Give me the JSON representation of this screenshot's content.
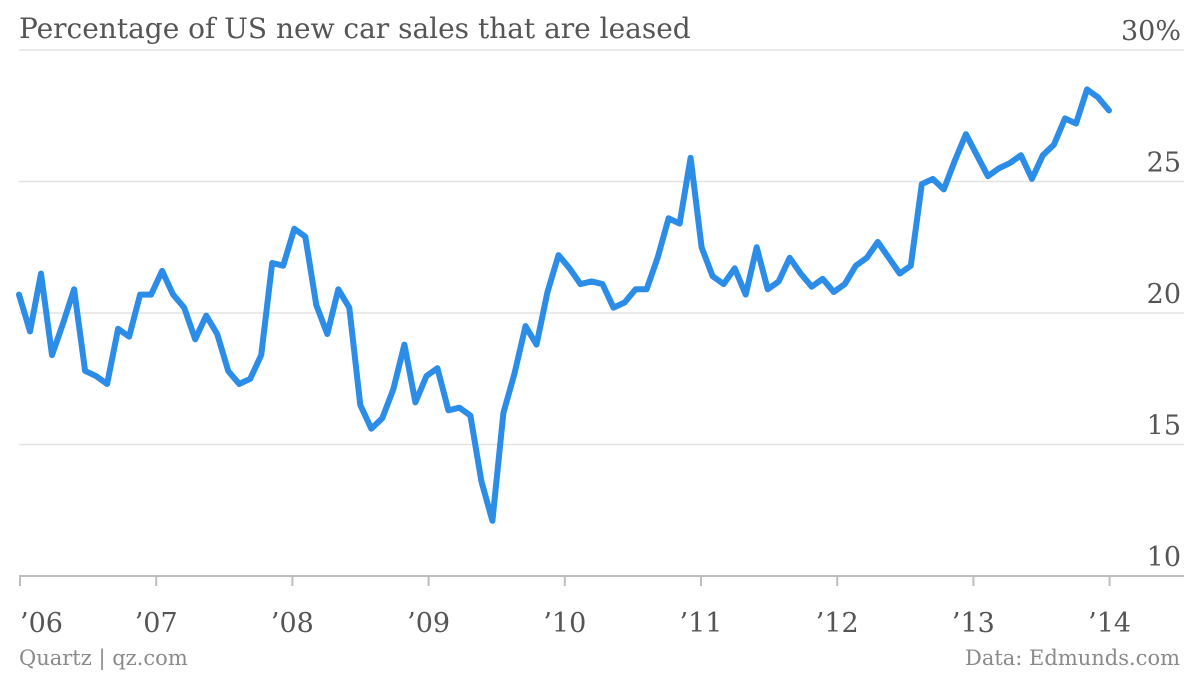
{
  "chart_data": {
    "type": "line",
    "title": "Percentage of US new car sales that are leased",
    "y_unit_label": "30%",
    "ylim": [
      10,
      30
    ],
    "y_ticks": [
      10,
      15,
      20,
      25,
      30
    ],
    "y_tick_labels": [
      "10",
      "15",
      "20",
      "25",
      "30%"
    ],
    "x_tick_labels": [
      "’06",
      "’07",
      "’08",
      "’09",
      "’10",
      "’11",
      "’12",
      "’13",
      "’14"
    ],
    "grid": true,
    "line_color": "#2b8de8",
    "series": [
      {
        "values": [
          20.7,
          19.3,
          21.5,
          18.4,
          19.6,
          20.9,
          17.8,
          17.6,
          17.3,
          19.4,
          19.1,
          20.7,
          20.7,
          21.6,
          20.7,
          20.2,
          19.0,
          19.9,
          19.2,
          17.8,
          17.3,
          17.5,
          18.4,
          21.9,
          21.8,
          23.2,
          22.9,
          20.3,
          19.2,
          20.9,
          20.2,
          16.5,
          15.6,
          16.0,
          17.1,
          18.8,
          16.6,
          17.6,
          17.9,
          16.3,
          16.4,
          16.1,
          13.6,
          12.1,
          16.2,
          17.7,
          19.5,
          18.8,
          20.8,
          22.2,
          21.7,
          21.1,
          21.2,
          21.1,
          20.2,
          20.4,
          20.9,
          20.9,
          22.1,
          23.6,
          23.4,
          25.9,
          22.5,
          21.4,
          21.1,
          21.7,
          20.7,
          22.5,
          20.9,
          21.2,
          22.1,
          21.5,
          21.0,
          21.3,
          20.8,
          21.1,
          21.8,
          22.1,
          22.7,
          22.1,
          21.5,
          21.8,
          24.9,
          25.1,
          24.7,
          25.8,
          26.8,
          26.0,
          25.2,
          25.5,
          25.7,
          26.0,
          25.1,
          26.0,
          26.4,
          27.4,
          27.2,
          28.5,
          28.2,
          27.7
        ]
      }
    ]
  },
  "footer": {
    "source_left": "Quartz | qz.com",
    "source_right": "Data: Edmunds.com"
  }
}
